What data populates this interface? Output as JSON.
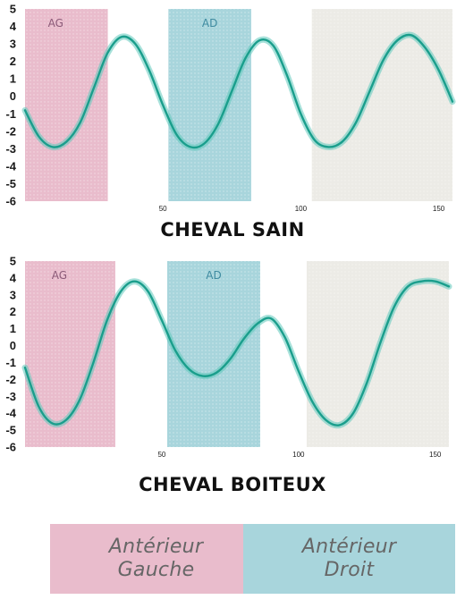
{
  "colors": {
    "curve": "#1a9e8c",
    "curve_halo": "#5fc9bb",
    "ag_fill": "#e9bccc",
    "ad_fill": "#a8d5dc",
    "neutral_fill": "#ecebe6",
    "ag_text": "#8b5a78",
    "ad_text": "#3f8ba0"
  },
  "legend": [
    {
      "line1": "Antérieur",
      "line2": "Gauche",
      "color": "#e9bccc"
    },
    {
      "line1": "Antérieur",
      "line2": "Droit",
      "color": "#a8d5dc"
    }
  ],
  "chart_data": [
    {
      "type": "line",
      "title": "CHEVAL SAIN",
      "xlim": [
        0,
        155
      ],
      "ylim": [
        -6,
        5
      ],
      "xticks": [
        50,
        100,
        150
      ],
      "yticks": [
        5,
        4,
        3,
        2,
        1,
        0,
        -1,
        -2,
        -3,
        -4,
        -5,
        -6
      ],
      "bands": [
        {
          "label": "AG",
          "x": [
            0,
            30
          ],
          "kind": "ag"
        },
        {
          "label": "AD",
          "x": [
            52,
            82
          ],
          "kind": "ad"
        },
        {
          "label": "",
          "x": [
            104,
            155
          ],
          "kind": "neutral"
        }
      ],
      "series": [
        {
          "x": [
            0,
            5,
            10,
            15,
            20,
            25,
            30,
            35,
            40,
            45,
            50,
            55,
            60,
            65,
            70,
            75,
            80,
            85,
            90,
            95,
            100,
            105,
            110,
            115,
            120,
            125,
            130,
            135,
            140,
            145,
            150,
            155
          ],
          "y": [
            -0.8,
            -2.3,
            -2.9,
            -2.6,
            -1.5,
            0.5,
            2.5,
            3.4,
            3.0,
            1.5,
            -0.5,
            -2.2,
            -2.9,
            -2.7,
            -1.6,
            0.3,
            2.2,
            3.2,
            2.9,
            1.2,
            -1.0,
            -2.5,
            -2.9,
            -2.6,
            -1.5,
            0.3,
            2.1,
            3.2,
            3.5,
            2.8,
            1.5,
            -0.3
          ]
        }
      ]
    },
    {
      "type": "line",
      "title": "CHEVAL BOITEUX",
      "xlim": [
        0,
        155
      ],
      "ylim": [
        -6,
        5
      ],
      "xticks": [
        50,
        100,
        150
      ],
      "yticks": [
        5,
        4,
        3,
        2,
        1,
        0,
        -1,
        -2,
        -3,
        -4,
        -5,
        -6
      ],
      "bands": [
        {
          "label": "AG",
          "x": [
            0,
            33
          ],
          "kind": "ag"
        },
        {
          "label": "AD",
          "x": [
            52,
            86
          ],
          "kind": "ad"
        },
        {
          "label": "",
          "x": [
            103,
            155
          ],
          "kind": "neutral"
        }
      ],
      "series": [
        {
          "x": [
            0,
            5,
            10,
            15,
            20,
            25,
            30,
            35,
            40,
            45,
            50,
            55,
            60,
            65,
            70,
            75,
            80,
            85,
            90,
            95,
            100,
            105,
            110,
            115,
            120,
            125,
            130,
            135,
            140,
            145,
            150,
            155
          ],
          "y": [
            -1.3,
            -3.6,
            -4.6,
            -4.4,
            -3.2,
            -1.0,
            1.5,
            3.2,
            3.8,
            3.2,
            1.5,
            -0.3,
            -1.4,
            -1.8,
            -1.6,
            -0.8,
            0.4,
            1.3,
            1.6,
            0.5,
            -1.5,
            -3.3,
            -4.4,
            -4.7,
            -4.0,
            -2.2,
            0.2,
            2.3,
            3.5,
            3.8,
            3.8,
            3.5
          ]
        }
      ]
    }
  ]
}
